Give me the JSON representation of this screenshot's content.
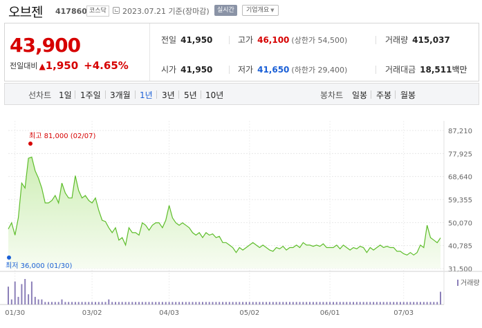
{
  "header": {
    "stock_name": "오브젠",
    "stock_code": "417860",
    "market": "코스닥",
    "base_date": "2023.07.21  기준(장마감)",
    "realtime_label": "실시간",
    "overview_label": "기업개요"
  },
  "quote": {
    "current_price": "43,900",
    "change_label": "전일대비",
    "change_amount": "1,950",
    "change_percent": "+4.65%",
    "prev_close_label": "전일",
    "prev_close": "41,950",
    "high_label": "고가",
    "high": "46,100",
    "upper_limit": "(상한가 54,500)",
    "volume_label": "거래량",
    "volume": "415,037",
    "open_label": "시가",
    "open": "41,950",
    "low_label": "저가",
    "low": "41,650",
    "lower_limit": "(하한가 29,400)",
    "value_label": "거래대금",
    "value": "18,511",
    "value_unit": "백만",
    "up_color": "#d60000",
    "down_color": "#1a5fd6"
  },
  "periods": {
    "line_label": "선차트",
    "line_items": [
      "1일",
      "1주일",
      "3개월",
      "1년",
      "3년",
      "5년",
      "10년"
    ],
    "active": "1년",
    "candle_label": "봉차트",
    "candle_items": [
      "일봉",
      "주봉",
      "월봉"
    ]
  },
  "chart_data": {
    "type": "area",
    "x_labels": [
      "01/30",
      "03/02",
      "04/03",
      "05/02",
      "06/01",
      "07/03"
    ],
    "y_ticks": [
      87210,
      77925,
      68640,
      59355,
      50070,
      40785,
      31500
    ],
    "y_tick_labels": [
      "87,210",
      "77,925",
      "68,640",
      "59,355",
      "50,070",
      "40,785",
      "31,500"
    ],
    "ylim": [
      31500,
      87210
    ],
    "max_label": "최고 81,000 (02/07)",
    "min_label": "최저 36,000 (01/30)",
    "volume_label": "거래량",
    "line_color": "#5dbd2a",
    "series": [
      {
        "values": [
          47500,
          50000,
          45000,
          52000,
          66000,
          64000,
          76000,
          76500,
          71000,
          68000,
          64000,
          58000,
          58000,
          59000,
          61000,
          58000,
          66000,
          62000,
          60000,
          60000,
          69000,
          63000,
          60000,
          61000,
          59000,
          58000,
          60000,
          55000,
          51000,
          50500,
          48000,
          46000,
          48000,
          43000,
          44000,
          41000,
          48000,
          46000,
          46000,
          45000,
          50000,
          49000,
          47000,
          49000,
          50000,
          50000,
          48000,
          51000,
          57000,
          52000,
          50000,
          49000,
          50000,
          49000,
          48000,
          46000,
          45000,
          46000,
          44000,
          46000,
          45000,
          45500,
          44000,
          44500,
          42000,
          42000,
          41000,
          40000,
          38000,
          40000,
          39000,
          40000,
          41000,
          42000,
          41000,
          40000,
          41000,
          40000,
          39000,
          38500,
          40000,
          39500,
          40500,
          39000,
          40000,
          40000,
          41000,
          40000,
          42000,
          41000,
          41000,
          40500,
          41000,
          40500,
          41500,
          40000,
          40000,
          40000,
          41000,
          39500,
          41000,
          40000,
          39000,
          40000,
          39500,
          40500,
          40000,
          38000,
          40000,
          39000,
          40000,
          41000,
          40000,
          40500,
          40000,
          40000,
          38500,
          38500,
          37500,
          37000,
          38000,
          37000,
          38000,
          41000,
          40000,
          49000,
          44000,
          43000,
          41950,
          43900
        ]
      }
    ],
    "volume": [
      7,
      2,
      9,
      3,
      8,
      10,
      4,
      9,
      3,
      2,
      2,
      1,
      1,
      1,
      1,
      1,
      2,
      1,
      1,
      1,
      1,
      1,
      1,
      1,
      1,
      1,
      1,
      1,
      1,
      1,
      2,
      1,
      1,
      1,
      1,
      1,
      1,
      1,
      1,
      1,
      1,
      1,
      1,
      1,
      1,
      1,
      1,
      1,
      1,
      1,
      1,
      1,
      1,
      1,
      1,
      1,
      1,
      1,
      1,
      1,
      1,
      1,
      1,
      1,
      1,
      1,
      1,
      1,
      1,
      1,
      1,
      1,
      1,
      1,
      1,
      1,
      1,
      1,
      1,
      1,
      1,
      1,
      1,
      1,
      1,
      1,
      1,
      1,
      1,
      1,
      1,
      1,
      1,
      1,
      1,
      1,
      1,
      1,
      1,
      1,
      1,
      1,
      1,
      1,
      1,
      1,
      1,
      1,
      1,
      1,
      1,
      1,
      1,
      1,
      1,
      1,
      1,
      1,
      1,
      1,
      1,
      1,
      1,
      1,
      1,
      1,
      1,
      1,
      1,
      5,
      2,
      1,
      1,
      2
    ]
  }
}
